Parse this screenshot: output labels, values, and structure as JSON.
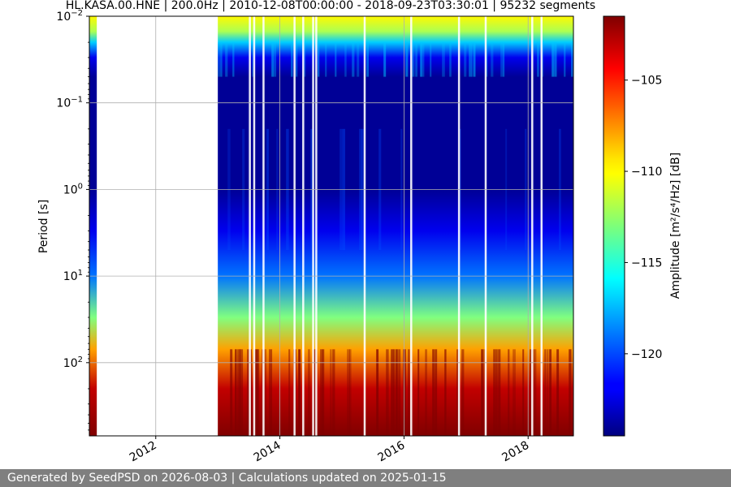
{
  "chart_data": {
    "type": "heatmap",
    "title": "HL.KASA.00.HNE | 200.0Hz | 2010-12-08T00:00:00 - 2018-09-23T03:30:01 | 95232 segments",
    "ylabel": "Period [s]",
    "xlabel": "",
    "colorbar_label": "Amplitude [m²/s⁴/Hz] [dB]",
    "y_scale": "log",
    "y_inverted": true,
    "xlim": [
      2010.93,
      2018.73
    ],
    "ylim_period_s": [
      0.01,
      700
    ],
    "x_ticks": [
      {
        "value": 2012,
        "label": "2012"
      },
      {
        "value": 2014,
        "label": "2014"
      },
      {
        "value": 2016,
        "label": "2016"
      },
      {
        "value": 2018,
        "label": "2018"
      }
    ],
    "y_ticks": [
      {
        "value": 0.01,
        "base": "10",
        "exp": "−2"
      },
      {
        "value": 0.1,
        "base": "10",
        "exp": "−1"
      },
      {
        "value": 1,
        "base": "10",
        "exp": "0"
      },
      {
        "value": 10,
        "base": "10",
        "exp": "1"
      },
      {
        "value": 100,
        "base": "10",
        "exp": "2"
      }
    ],
    "colorbar_range_db": [
      -124.5,
      -101.5
    ],
    "colorbar_ticks": [
      {
        "value": -105,
        "label": "−105"
      },
      {
        "value": -110,
        "label": "−110"
      },
      {
        "value": -115,
        "label": "−115"
      },
      {
        "value": -120,
        "label": "−120"
      }
    ],
    "colormap": "jet",
    "grid": true,
    "data_gap": {
      "start": 2011.05,
      "end": 2013.0
    },
    "early_data_strip": {
      "start": 2010.93,
      "end": 2011.05
    },
    "amplitude_profile": [
      {
        "period_s": 0.01,
        "db": -110
      },
      {
        "period_s": 0.015,
        "db": -112
      },
      {
        "period_s": 0.02,
        "db": -117
      },
      {
        "period_s": 0.03,
        "db": -122
      },
      {
        "period_s": 0.05,
        "db": -124
      },
      {
        "period_s": 1,
        "db": -124
      },
      {
        "period_s": 3,
        "db": -122
      },
      {
        "period_s": 10,
        "db": -119
      },
      {
        "period_s": 30,
        "db": -113
      },
      {
        "period_s": 70,
        "db": -108
      },
      {
        "period_s": 200,
        "db": -103
      },
      {
        "period_s": 700,
        "db": -101.5
      }
    ],
    "missing_data_years": [
      2013.5,
      2013.57,
      2013.72,
      2014.22,
      2014.36,
      2014.52,
      2014.57,
      2015.35,
      2016.1,
      2016.87,
      2017.3,
      2018.05,
      2018.2
    ]
  },
  "footer": {
    "text": "Generated by SeedPSD on 2026-08-03 | Calculations updated on 2025-01-15"
  }
}
